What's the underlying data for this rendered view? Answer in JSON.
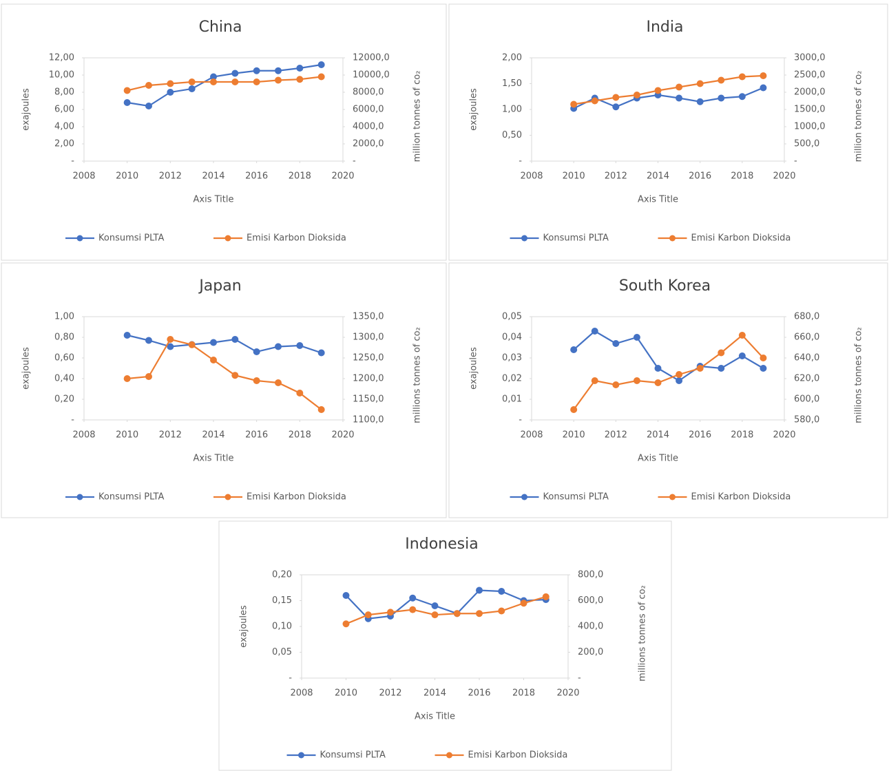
{
  "chart_data": [
    {
      "type": "line",
      "title": "China",
      "x_label": "Axis Title",
      "y_label": "exajoules",
      "y2_label": "million tonnes of co₂",
      "x": [
        2010,
        2011,
        2012,
        2013,
        2014,
        2015,
        2016,
        2017,
        2018,
        2019
      ],
      "xlim": [
        2008,
        2020
      ],
      "xticks": [
        2008,
        2010,
        2012,
        2014,
        2016,
        2018,
        2020
      ],
      "ylim": [
        0,
        12
      ],
      "yticks": [
        {
          "value": 0,
          "label": "-"
        },
        {
          "value": 2,
          "label": "2,00"
        },
        {
          "value": 4,
          "label": "4,00"
        },
        {
          "value": 6,
          "label": "6,00"
        },
        {
          "value": 8,
          "label": "8,00"
        },
        {
          "value": 10,
          "label": "10,00"
        },
        {
          "value": 12,
          "label": "12,00"
        }
      ],
      "y2lim": [
        0,
        12000
      ],
      "y2ticks": [
        {
          "value": 0,
          "label": "-"
        },
        {
          "value": 2000,
          "label": "2000,0"
        },
        {
          "value": 4000,
          "label": "4000,0"
        },
        {
          "value": 6000,
          "label": "6000,0"
        },
        {
          "value": 8000,
          "label": "8000,0"
        },
        {
          "value": 10000,
          "label": "10000,0"
        },
        {
          "value": 12000,
          "label": "12000,0"
        }
      ],
      "grid": false,
      "series": [
        {
          "name": "Konsumsi PLTA",
          "color": "#4472c4",
          "values": [
            6.8,
            6.4,
            8.0,
            8.4,
            9.8,
            10.2,
            10.5,
            10.5,
            10.8,
            11.2
          ]
        },
        {
          "name": "Emisi Karbon Dioksida",
          "color": "#ed7d31",
          "axis": "y2",
          "values": [
            8200,
            8800,
            9000,
            9200,
            9200,
            9200,
            9200,
            9400,
            9500,
            9800
          ]
        }
      ]
    },
    {
      "type": "line",
      "title": "India",
      "x_label": "Axis Title",
      "y_label": "exajoules",
      "y2_label": "million tonnes of co₂",
      "x": [
        2010,
        2011,
        2012,
        2013,
        2014,
        2015,
        2016,
        2017,
        2018,
        2019
      ],
      "xlim": [
        2008,
        2020
      ],
      "xticks": [
        2008,
        2010,
        2012,
        2014,
        2016,
        2018,
        2020
      ],
      "ylim": [
        0,
        2
      ],
      "yticks": [
        {
          "value": 0,
          "label": "-"
        },
        {
          "value": 0.5,
          "label": "0,50"
        },
        {
          "value": 1,
          "label": "1,00"
        },
        {
          "value": 1.5,
          "label": "1,50"
        },
        {
          "value": 2,
          "label": "2,00"
        }
      ],
      "y2lim": [
        0,
        3000
      ],
      "y2ticks": [
        {
          "value": 0,
          "label": "-"
        },
        {
          "value": 500,
          "label": "500,0"
        },
        {
          "value": 1000,
          "label": "1000,0"
        },
        {
          "value": 1500,
          "label": "1500,0"
        },
        {
          "value": 2000,
          "label": "2000,0"
        },
        {
          "value": 2500,
          "label": "2500,0"
        },
        {
          "value": 3000,
          "label": "3000,0"
        }
      ],
      "grid": false,
      "series": [
        {
          "name": "Konsumsi PLTA",
          "color": "#4472c4",
          "values": [
            1.02,
            1.22,
            1.05,
            1.22,
            1.28,
            1.22,
            1.15,
            1.22,
            1.25,
            1.42
          ]
        },
        {
          "name": "Emisi Karbon Dioksida",
          "color": "#ed7d31",
          "axis": "y2",
          "values": [
            1650,
            1750,
            1850,
            1920,
            2050,
            2150,
            2250,
            2350,
            2450,
            2480
          ]
        }
      ]
    },
    {
      "type": "line",
      "title": "Japan",
      "x_label": "Axis Title",
      "y_label": "exajoules",
      "y2_label": "millions tonnes of co₂",
      "x": [
        2010,
        2011,
        2012,
        2013,
        2014,
        2015,
        2016,
        2017,
        2018,
        2019
      ],
      "xlim": [
        2008,
        2020
      ],
      "xticks": [
        2008,
        2010,
        2012,
        2014,
        2016,
        2018,
        2020
      ],
      "ylim": [
        0,
        1
      ],
      "yticks": [
        {
          "value": 0,
          "label": "-"
        },
        {
          "value": 0.2,
          "label": "0,20"
        },
        {
          "value": 0.4,
          "label": "0,40"
        },
        {
          "value": 0.6,
          "label": "0,60"
        },
        {
          "value": 0.8,
          "label": "0,80"
        },
        {
          "value": 1,
          "label": "1,00"
        }
      ],
      "y2lim": [
        1100,
        1350
      ],
      "y2ticks": [
        {
          "value": 1100,
          "label": "1100,0"
        },
        {
          "value": 1150,
          "label": "1150,0"
        },
        {
          "value": 1200,
          "label": "1200,0"
        },
        {
          "value": 1250,
          "label": "1250,0"
        },
        {
          "value": 1300,
          "label": "1300,0"
        },
        {
          "value": 1350,
          "label": "1350,0"
        }
      ],
      "grid": false,
      "series": [
        {
          "name": "Konsumsi PLTA",
          "color": "#4472c4",
          "values": [
            0.82,
            0.77,
            0.71,
            0.73,
            0.75,
            0.78,
            0.66,
            0.71,
            0.72,
            0.65
          ]
        },
        {
          "name": "Emisi Karbon Dioksida",
          "color": "#ed7d31",
          "axis": "y2",
          "values": [
            1200,
            1205,
            1295,
            1282,
            1245,
            1208,
            1195,
            1190,
            1165,
            1125
          ]
        }
      ]
    },
    {
      "type": "line",
      "title": "South Korea",
      "x_label": "Axis Title",
      "y_label": "exajoules",
      "y2_label": "millions tonnes of co₂",
      "x": [
        2010,
        2011,
        2012,
        2013,
        2014,
        2015,
        2016,
        2017,
        2018,
        2019
      ],
      "xlim": [
        2008,
        2020
      ],
      "xticks": [
        2008,
        2010,
        2012,
        2014,
        2016,
        2018,
        2020
      ],
      "ylim": [
        0,
        0.05
      ],
      "yticks": [
        {
          "value": 0,
          "label": "-"
        },
        {
          "value": 0.01,
          "label": "0,01"
        },
        {
          "value": 0.02,
          "label": "0,02"
        },
        {
          "value": 0.03,
          "label": "0,03"
        },
        {
          "value": 0.04,
          "label": "0,04"
        },
        {
          "value": 0.05,
          "label": "0,05"
        }
      ],
      "y2lim": [
        580,
        680
      ],
      "y2ticks": [
        {
          "value": 580,
          "label": "580,0"
        },
        {
          "value": 600,
          "label": "600,0"
        },
        {
          "value": 620,
          "label": "620,0"
        },
        {
          "value": 640,
          "label": "640,0"
        },
        {
          "value": 660,
          "label": "660,0"
        },
        {
          "value": 680,
          "label": "680,0"
        }
      ],
      "grid": false,
      "series": [
        {
          "name": "Konsumsi PLTA",
          "color": "#4472c4",
          "values": [
            0.034,
            0.043,
            0.037,
            0.04,
            0.025,
            0.019,
            0.026,
            0.025,
            0.031,
            0.025
          ]
        },
        {
          "name": "Emisi Karbon Dioksida",
          "color": "#ed7d31",
          "axis": "y2",
          "values": [
            590,
            618,
            614,
            618,
            616,
            624,
            630,
            645,
            662,
            640
          ]
        }
      ]
    },
    {
      "type": "line",
      "title": "Indonesia",
      "x_label": "Axis Title",
      "y_label": "exajoules",
      "y2_label": "millions tonnes of co₂",
      "x": [
        2010,
        2011,
        2012,
        2013,
        2014,
        2015,
        2016,
        2017,
        2018,
        2019
      ],
      "xlim": [
        2008,
        2020
      ],
      "xticks": [
        2008,
        2010,
        2012,
        2014,
        2016,
        2018,
        2020
      ],
      "ylim": [
        0,
        0.2
      ],
      "yticks": [
        {
          "value": 0,
          "label": "-"
        },
        {
          "value": 0.05,
          "label": "0,05"
        },
        {
          "value": 0.1,
          "label": "0,10"
        },
        {
          "value": 0.15,
          "label": "0,15"
        },
        {
          "value": 0.2,
          "label": "0,20"
        }
      ],
      "y2lim": [
        0,
        800
      ],
      "y2ticks": [
        {
          "value": 0,
          "label": "-"
        },
        {
          "value": 200,
          "label": "200,0"
        },
        {
          "value": 400,
          "label": "400,0"
        },
        {
          "value": 600,
          "label": "600,0"
        },
        {
          "value": 800,
          "label": "800,0"
        }
      ],
      "grid": false,
      "series": [
        {
          "name": "Konsumsi PLTA",
          "color": "#4472c4",
          "values": [
            0.16,
            0.115,
            0.12,
            0.155,
            0.14,
            0.125,
            0.17,
            0.168,
            0.15,
            0.152
          ]
        },
        {
          "name": "Emisi Karbon Dioksida",
          "color": "#ed7d31",
          "axis": "y2",
          "values": [
            420,
            490,
            510,
            530,
            490,
            500,
            500,
            520,
            580,
            630
          ]
        }
      ]
    }
  ]
}
